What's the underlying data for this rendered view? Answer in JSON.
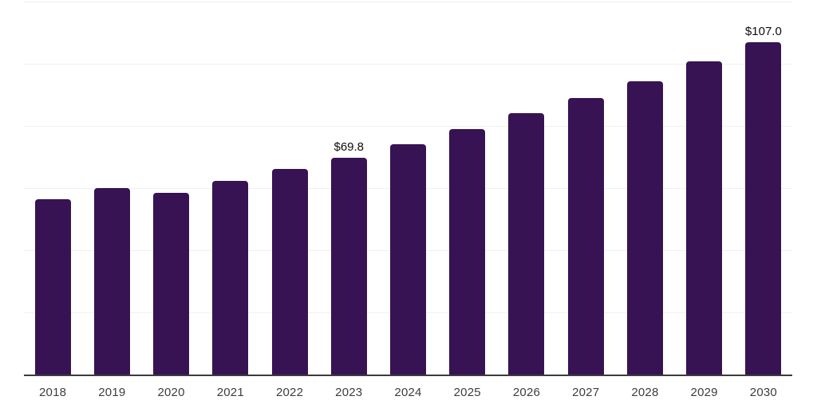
{
  "chart_data": {
    "type": "bar",
    "title": "",
    "xlabel": "",
    "ylabel": "",
    "categories": [
      "2018",
      "2019",
      "2020",
      "2021",
      "2022",
      "2023",
      "2024",
      "2025",
      "2026",
      "2027",
      "2028",
      "2029",
      "2030"
    ],
    "values": [
      56.3,
      60.0,
      58.4,
      62.2,
      66.1,
      69.8,
      74.1,
      79.0,
      84.0,
      88.9,
      94.4,
      100.7,
      107.0
    ],
    "data_labels": [
      "",
      "",
      "",
      "",
      "",
      "$69.8",
      "",
      "",
      "",
      "",
      "",
      "",
      "$107.0"
    ],
    "ylim": [
      0,
      120
    ],
    "gridline_step": 20,
    "y_axis_tick_labels_visible": false,
    "grid": "horizontal",
    "legend": "none"
  },
  "colors": {
    "background": "#ffffff",
    "bar": "#371353",
    "gridline": "#f0f0f2",
    "axis_line": "#3b3b3b",
    "year_label": "#3d3d3d",
    "value_label": "#0d0d0d"
  }
}
